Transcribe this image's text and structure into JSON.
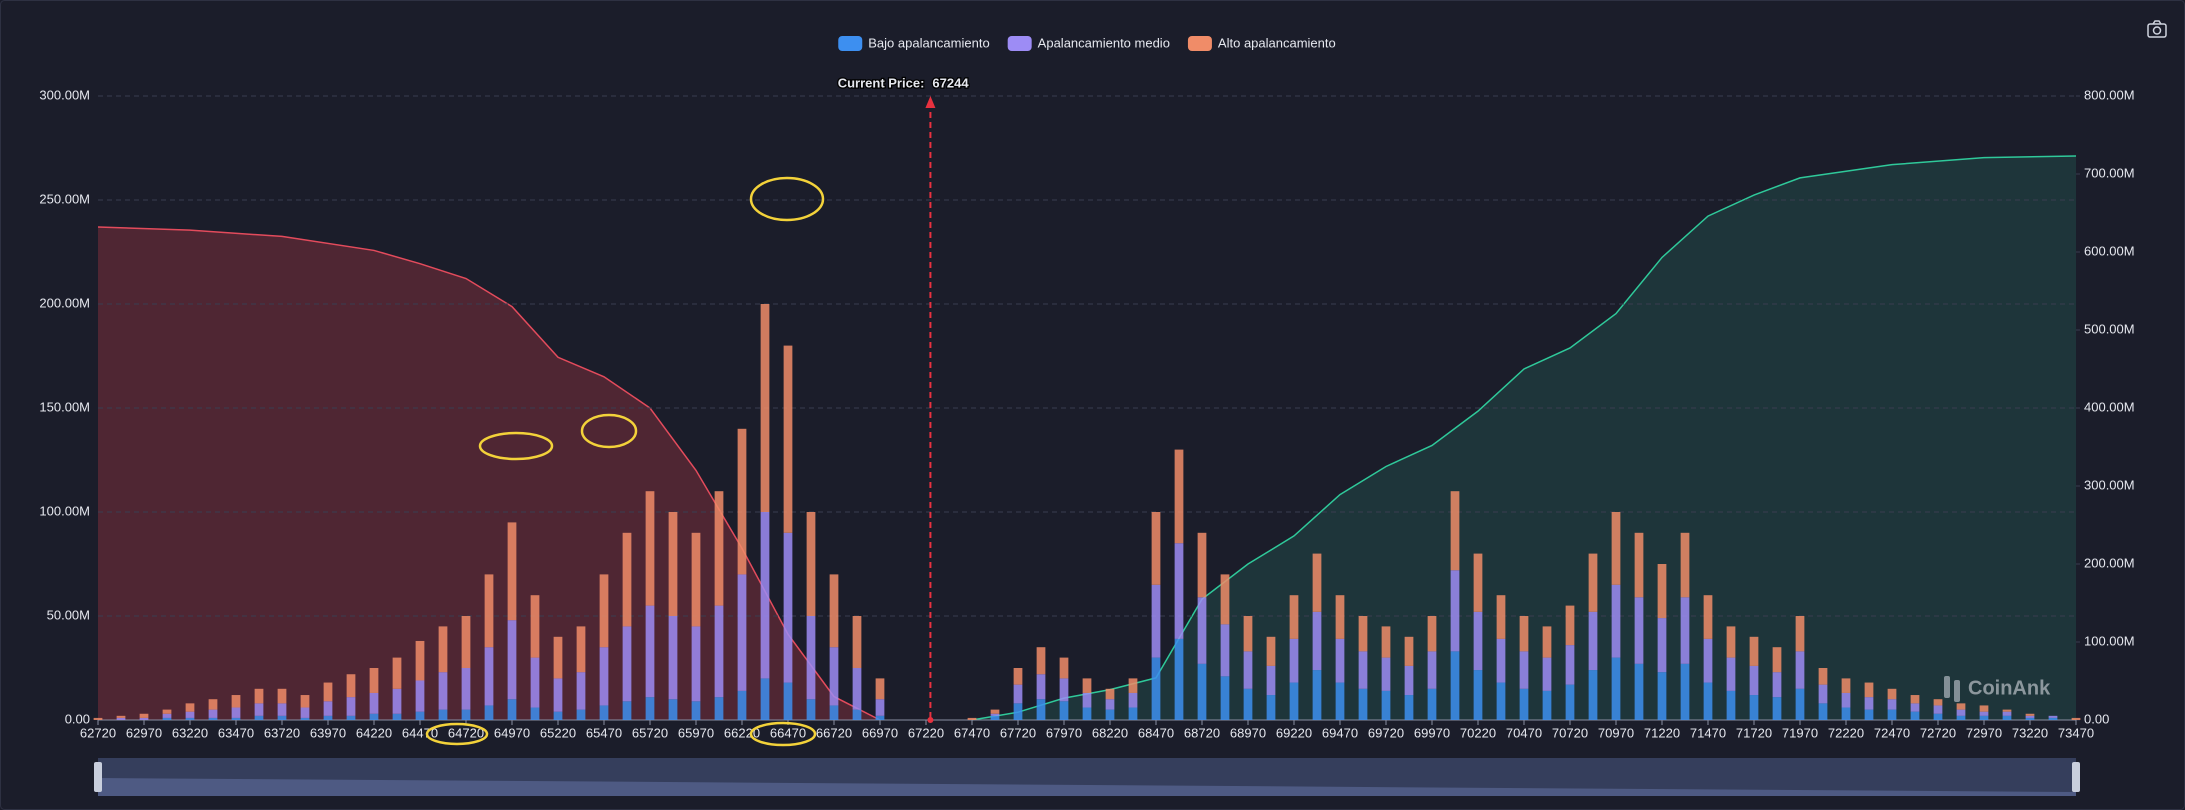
{
  "chart_data": {
    "type": "bar",
    "stacked": true,
    "legend": "top",
    "grid": true,
    "watermark": "CoinAnk",
    "annotation": {
      "label": "Current Price:",
      "value": 67244,
      "color": "#e8313f"
    },
    "xlim": [
      62720,
      73470
    ],
    "xticks": [
      62720,
      62970,
      63220,
      63470,
      63720,
      63970,
      64220,
      64470,
      64720,
      64970,
      65220,
      65470,
      65720,
      65970,
      66220,
      66470,
      66720,
      66970,
      67220,
      67470,
      67720,
      67970,
      68220,
      68470,
      68720,
      68970,
      69220,
      69470,
      69720,
      69970,
      70220,
      70470,
      70720,
      70970,
      71220,
      71470,
      71720,
      71970,
      72220,
      72470,
      72720,
      72970,
      73220,
      73470
    ],
    "ylim": [
      0,
      300
    ],
    "yticks": [
      {
        "value": 0,
        "label": "0.00"
      },
      {
        "value": 50,
        "label": "50.00M"
      },
      {
        "value": 100,
        "label": "100.00M"
      },
      {
        "value": 150,
        "label": "150.00M"
      },
      {
        "value": 200,
        "label": "200.00M"
      },
      {
        "value": 250,
        "label": "250.00M"
      },
      {
        "value": 300,
        "label": "300.00M"
      }
    ],
    "y2lim": [
      0,
      800
    ],
    "y2ticks": [
      {
        "value": 0,
        "label": "0.00"
      },
      {
        "value": 100,
        "label": "100.00M"
      },
      {
        "value": 200,
        "label": "200.00M"
      },
      {
        "value": 300,
        "label": "300.00M"
      },
      {
        "value": 400,
        "label": "400.00M"
      },
      {
        "value": 500,
        "label": "500.00M"
      },
      {
        "value": 600,
        "label": "600.00M"
      },
      {
        "value": 700,
        "label": "700.00M"
      },
      {
        "value": 800,
        "label": "800.00M"
      }
    ],
    "x": [
      62720,
      62845,
      62970,
      63095,
      63220,
      63345,
      63470,
      63595,
      63720,
      63845,
      63970,
      64095,
      64220,
      64345,
      64470,
      64595,
      64720,
      64845,
      64970,
      65095,
      65220,
      65345,
      65470,
      65595,
      65720,
      65845,
      65970,
      66095,
      66220,
      66345,
      66470,
      66595,
      66720,
      66845,
      66970,
      67095,
      67220,
      67345,
      67470,
      67595,
      67720,
      67845,
      67970,
      68095,
      68220,
      68345,
      68470,
      68595,
      68720,
      68845,
      68970,
      69095,
      69220,
      69345,
      69470,
      69595,
      69720,
      69845,
      69970,
      70095,
      70220,
      70345,
      70470,
      70595,
      70720,
      70845,
      70970,
      71095,
      71220,
      71345,
      71470,
      71595,
      71720,
      71845,
      71970,
      72095,
      72220,
      72345,
      72470,
      72595,
      72720,
      72845,
      72970,
      73095,
      73220,
      73345,
      73470
    ],
    "series": [
      {
        "name": "Bajo apalancamiento",
        "color": "#3d8ff0",
        "values": [
          0,
          0,
          0,
          1,
          1,
          1,
          1,
          2,
          2,
          1,
          2,
          2,
          3,
          3,
          4,
          5,
          5,
          7,
          10,
          6,
          4,
          5,
          7,
          9,
          11,
          10,
          9,
          11,
          14,
          20,
          18,
          10,
          7,
          5,
          2,
          0,
          0,
          0,
          0,
          2,
          8,
          10,
          9,
          6,
          5,
          6,
          30,
          39,
          27,
          21,
          15,
          12,
          18,
          24,
          18,
          15,
          14,
          12,
          15,
          33,
          24,
          18,
          15,
          14,
          17,
          24,
          30,
          27,
          23,
          27,
          18,
          14,
          12,
          11,
          15,
          8,
          6,
          5,
          5,
          4,
          3,
          2,
          2,
          2,
          1,
          1,
          0
        ]
      },
      {
        "name": "Apalancamiento medio",
        "color": "#9d8cf5",
        "values": [
          0,
          1,
          1,
          2,
          3,
          4,
          5,
          6,
          6,
          5,
          7,
          9,
          10,
          12,
          15,
          18,
          20,
          28,
          38,
          24,
          16,
          18,
          28,
          36,
          44,
          40,
          36,
          44,
          56,
          80,
          72,
          40,
          28,
          20,
          8,
          0,
          0,
          0,
          0,
          1,
          9,
          12,
          11,
          7,
          5,
          7,
          35,
          46,
          32,
          25,
          18,
          14,
          21,
          28,
          21,
          18,
          16,
          14,
          18,
          39,
          28,
          21,
          18,
          16,
          19,
          28,
          35,
          32,
          26,
          32,
          21,
          16,
          14,
          12,
          18,
          9,
          7,
          6,
          5,
          4,
          4,
          3,
          2,
          2,
          1,
          1,
          0
        ]
      },
      {
        "name": "Alto apalancamiento",
        "color": "#f08c68",
        "values": [
          1,
          1,
          2,
          2,
          4,
          5,
          6,
          7,
          7,
          6,
          9,
          11,
          12,
          15,
          19,
          22,
          25,
          35,
          47,
          30,
          20,
          22,
          35,
          45,
          55,
          50,
          45,
          55,
          70,
          100,
          90,
          50,
          35,
          25,
          10,
          0,
          0,
          0,
          1,
          2,
          8,
          13,
          10,
          7,
          5,
          7,
          35,
          45,
          31,
          24,
          17,
          14,
          21,
          28,
          21,
          17,
          15,
          14,
          17,
          38,
          28,
          21,
          17,
          15,
          19,
          28,
          35,
          31,
          26,
          31,
          21,
          15,
          14,
          12,
          17,
          8,
          7,
          7,
          5,
          4,
          3,
          3,
          3,
          1,
          1,
          0,
          1
        ]
      },
      {
        "type": "line",
        "axis": "y2",
        "color": "#e34b5c",
        "fill": "rgba(190,60,72,0.32)",
        "x": [
          62720,
          63220,
          63720,
          64220,
          64470,
          64720,
          64970,
          65220,
          65470,
          65720,
          65970,
          66220,
          66470,
          66720,
          66970
        ],
        "values": [
          632,
          628,
          620,
          602,
          585,
          566,
          530,
          465,
          440,
          400,
          320,
          220,
          110,
          30,
          0
        ]
      },
      {
        "type": "line",
        "axis": "y2",
        "color": "#2fc99a",
        "fill": "rgba(40,120,100,0.28)",
        "x": [
          67470,
          67720,
          67970,
          68220,
          68470,
          68720,
          68970,
          69220,
          69470,
          69720,
          69970,
          70220,
          70470,
          70720,
          70970,
          71220,
          71470,
          71720,
          71970,
          72470,
          72970,
          73470
        ],
        "values": [
          0,
          10,
          28,
          39,
          54,
          155,
          200,
          236,
          289,
          325,
          352,
          396,
          450,
          477,
          521,
          593,
          646,
          673,
          695,
          712,
          721,
          723
        ]
      }
    ]
  }
}
